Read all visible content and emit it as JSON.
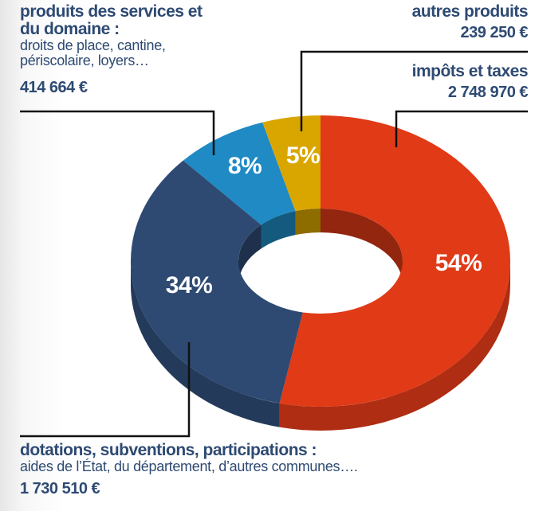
{
  "chart_data": {
    "type": "pie",
    "donut": true,
    "categories": [
      "impôts et taxes",
      "dotations, subventions, participations :",
      "produits des services et du domaine :",
      "autres produits"
    ],
    "values": [
      54,
      34,
      8,
      5
    ],
    "value_labels": [
      "54%",
      "34%",
      "8%",
      "5%"
    ],
    "colors": [
      "#e03a17",
      "#2e4a73",
      "#1f8ac4",
      "#d9a600"
    ],
    "descriptions": [
      null,
      "aides de l’État, du département, d’autres communes….",
      "droits de place, cantine, périscolaire, loyers…",
      null
    ],
    "amount_labels": [
      "2 748 970 €",
      "1 730 510 €",
      "414 664 €",
      "239 250 €"
    ]
  }
}
